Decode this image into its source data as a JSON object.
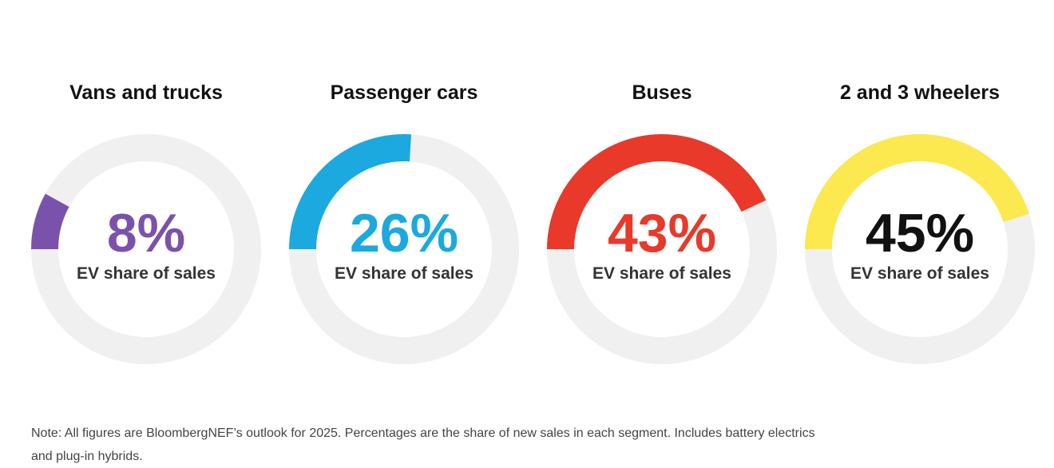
{
  "chart_data": {
    "type": "donut",
    "track_color": "#f0f0f0",
    "charts": [
      {
        "title": "Vans and trucks",
        "value": 8,
        "value_label": "8%",
        "subtitle": "EV share of sales",
        "color": "#7b52ab",
        "text_color": "#7b52ab"
      },
      {
        "title": "Passenger cars",
        "value": 26,
        "value_label": "26%",
        "subtitle": "EV share of sales",
        "color": "#1ba9e0",
        "text_color": "#1ba9e0"
      },
      {
        "title": "Buses",
        "value": 43,
        "value_label": "43%",
        "subtitle": "EV share of sales",
        "color": "#e8392a",
        "text_color": "#e8392a"
      },
      {
        "title": "2 and 3 wheelers",
        "value": 45,
        "value_label": "45%",
        "subtitle": "EV share of sales",
        "color": "#fce84f",
        "text_color": "#111111"
      }
    ]
  },
  "note": {
    "line1": "Note: All figures are BloombergNEF’s outlook for 2025. Percentages are the share of new sales in each segment. Includes battery electrics",
    "line2": "and plug-in hybrids."
  }
}
